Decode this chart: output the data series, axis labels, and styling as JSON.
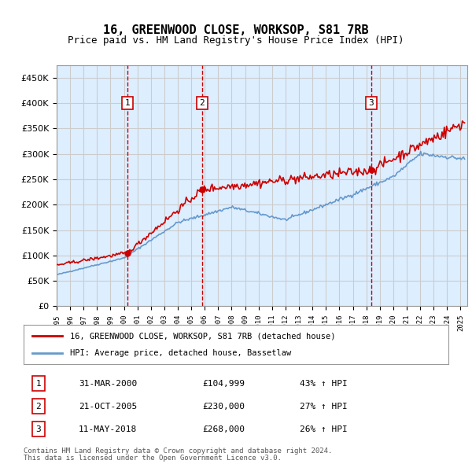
{
  "title": "16, GREENWOOD CLOSE, WORKSOP, S81 7RB",
  "subtitle": "Price paid vs. HM Land Registry's House Price Index (HPI)",
  "footer1": "Contains HM Land Registry data © Crown copyright and database right 2024.",
  "footer2": "This data is licensed under the Open Government Licence v3.0.",
  "legend_line1": "16, GREENWOOD CLOSE, WORKSOP, S81 7RB (detached house)",
  "legend_line2": "HPI: Average price, detached house, Bassetlaw",
  "transactions": [
    {
      "num": 1,
      "date": "31-MAR-2000",
      "price": "£104,999",
      "hpi": "43% ↑ HPI",
      "year": 2000.25
    },
    {
      "num": 2,
      "date": "21-OCT-2005",
      "price": "£230,000",
      "hpi": "27% ↑ HPI",
      "year": 2005.8
    },
    {
      "num": 3,
      "date": "11-MAY-2018",
      "price": "£268,000",
      "hpi": "26% ↑ HPI",
      "year": 2018.37
    }
  ],
  "transaction_values": [
    104999,
    230000,
    268000
  ],
  "transaction_years": [
    2000.25,
    2005.8,
    2018.37
  ],
  "ylim": [
    0,
    475000
  ],
  "xlim_start": 1995,
  "xlim_end": 2025.5,
  "red_color": "#cc0000",
  "blue_color": "#6699cc",
  "bg_color": "#ddeeff",
  "grid_color": "#cccccc",
  "vline_color": "#cc0000"
}
